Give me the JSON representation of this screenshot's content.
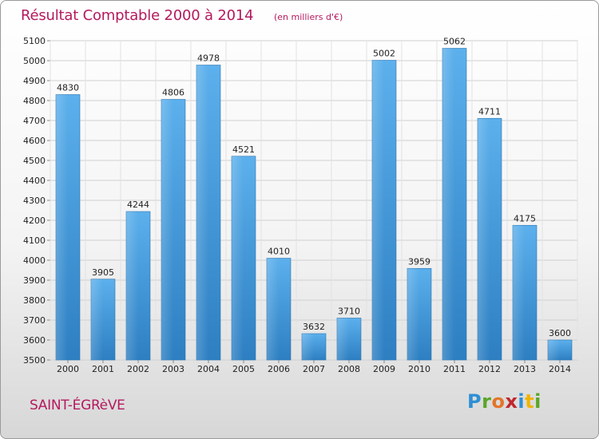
{
  "chart_data": {
    "type": "bar",
    "title": "Résultat Comptable 2000 à 2014",
    "subtitle": "(en milliers d'€)",
    "xlabel": "",
    "ylabel": "",
    "categories": [
      "2000",
      "2001",
      "2002",
      "2003",
      "2004",
      "2005",
      "2006",
      "2007",
      "2008",
      "2009",
      "2010",
      "2011",
      "2012",
      "2013",
      "2014"
    ],
    "values": [
      4830,
      3905,
      4244,
      4806,
      4978,
      4521,
      4010,
      3632,
      3710,
      5002,
      3959,
      5062,
      4711,
      4175,
      3600
    ],
    "ylim": [
      3500,
      5100
    ],
    "yticks": [
      3500,
      3600,
      3700,
      3800,
      3900,
      4000,
      4100,
      4200,
      4300,
      4400,
      4500,
      4600,
      4700,
      4800,
      4900,
      5000,
      5100
    ],
    "grid": true,
    "bar_color": "#4a9fdf"
  },
  "footer": {
    "commune": "SAINT-ÉGRèVE",
    "logo_letters": [
      "P",
      "r",
      "o",
      "x",
      "i",
      "t",
      "i"
    ]
  }
}
